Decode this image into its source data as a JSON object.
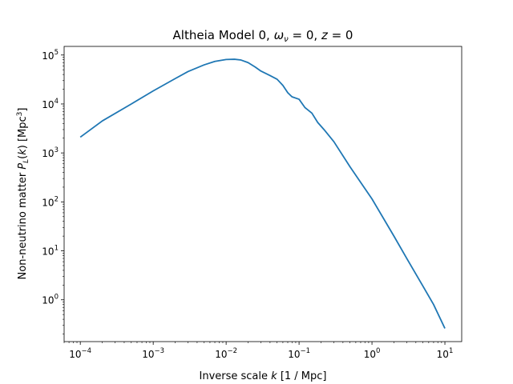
{
  "chart_data": {
    "type": "line",
    "title": "Altheia Model 0, ων = 0, z = 0",
    "xlabel": "Inverse scale k [1 / Mpc]",
    "ylabel": "Non-neutrino matter PL(k) [Mpc3]",
    "xscale": "log",
    "yscale": "log",
    "xlim": [
      6e-05,
      17.0
    ],
    "ylim": [
      0.14,
      150000
    ],
    "xticks": [
      {
        "value": 0.0001,
        "base": "10",
        "exp": "−4"
      },
      {
        "value": 0.001,
        "base": "10",
        "exp": "−3"
      },
      {
        "value": 0.01,
        "base": "10",
        "exp": "−2"
      },
      {
        "value": 0.1,
        "base": "10",
        "exp": "−1"
      },
      {
        "value": 1,
        "base": "10",
        "exp": "0"
      },
      {
        "value": 10,
        "base": "10",
        "exp": "1"
      }
    ],
    "yticks": [
      {
        "value": 1,
        "base": "10",
        "exp": "0"
      },
      {
        "value": 10,
        "base": "10",
        "exp": "1"
      },
      {
        "value": 100,
        "base": "10",
        "exp": "2"
      },
      {
        "value": 1000,
        "base": "10",
        "exp": "3"
      },
      {
        "value": 10000,
        "base": "10",
        "exp": "4"
      },
      {
        "value": 100000,
        "base": "10",
        "exp": "5"
      }
    ],
    "grid": false,
    "series": [
      {
        "color": "#1f77b4",
        "x": [
          0.0001,
          0.0002,
          0.0005,
          0.001,
          0.002,
          0.003,
          0.005,
          0.007,
          0.01,
          0.013,
          0.016,
          0.02,
          0.025,
          0.03,
          0.04,
          0.05,
          0.06,
          0.07,
          0.08,
          0.1,
          0.12,
          0.15,
          0.18,
          0.22,
          0.3,
          0.5,
          0.7,
          1,
          2,
          3,
          5,
          7,
          10
        ],
        "y": [
          2100,
          4500,
          10000,
          18500,
          33000,
          46000,
          63000,
          74000,
          81000,
          82000,
          79000,
          70000,
          57000,
          47000,
          38000,
          32000,
          24000,
          17000,
          14000,
          12500,
          8500,
          6500,
          4200,
          3000,
          1700,
          520,
          250,
          115,
          20,
          7,
          1.9,
          0.8,
          0.26
        ]
      }
    ]
  }
}
